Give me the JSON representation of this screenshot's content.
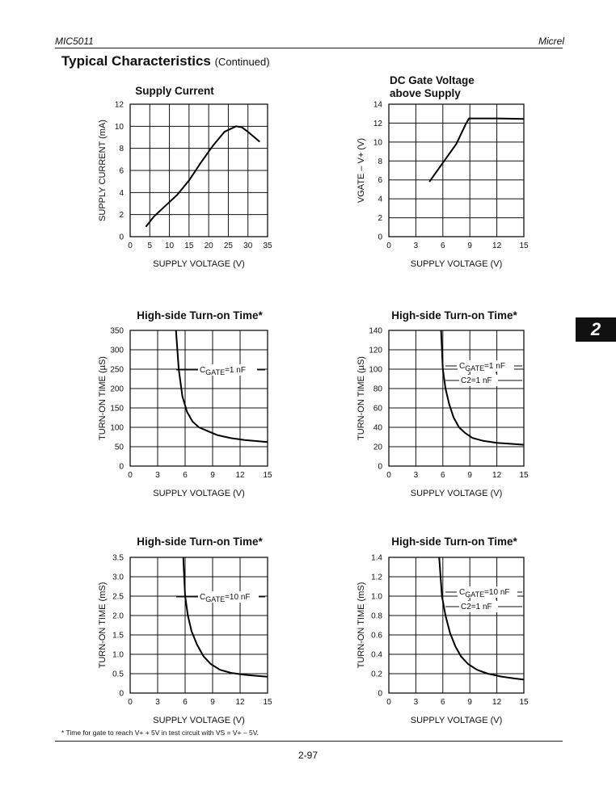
{
  "header": {
    "left": "MIC5011",
    "right": "Micrel"
  },
  "section": {
    "title": "Typical Characteristics",
    "subtitle": "(Continued)"
  },
  "side_tab": "2",
  "footnote": "* Time for gate to reach V+ + 5V in test circuit with VS = V+ – 5V.",
  "page_number": "2-97",
  "chart_data": [
    {
      "type": "line",
      "title": "Supply Current",
      "xlabel": "SUPPLY VOLTAGE (V)",
      "ylabel": "SUPPLY CURRENT (mA)",
      "xlim": [
        0,
        35
      ],
      "ylim": [
        0,
        12
      ],
      "xticks": [
        "0",
        "5",
        "10",
        "15",
        "20",
        "25",
        "30",
        "35"
      ],
      "yticks": [
        "0",
        "2",
        "4",
        "6",
        "8",
        "10",
        "12"
      ],
      "xtick_values": [
        0,
        5,
        10,
        15,
        20,
        25,
        30,
        35
      ],
      "ytick_values": [
        0,
        2,
        4,
        6,
        8,
        10,
        12
      ],
      "grid": true,
      "annotations": [],
      "series": [
        {
          "x": [
            4,
            6,
            9,
            12,
            15,
            18,
            21,
            24,
            27,
            28.5,
            30,
            33
          ],
          "y": [
            0.9,
            1.8,
            2.8,
            3.8,
            5.1,
            6.7,
            8.2,
            9.5,
            10.0,
            9.9,
            9.5,
            8.6
          ]
        }
      ]
    },
    {
      "type": "line",
      "title": "DC Gate Voltage above Supply",
      "title_lines": [
        "DC Gate Voltage",
        "above Supply"
      ],
      "xlabel": "SUPPLY VOLTAGE (V)",
      "ylabel": "VGATE – V+ (V)",
      "xlim": [
        0,
        15
      ],
      "ylim": [
        0,
        14
      ],
      "xticks": [
        "0",
        "3",
        "6",
        "9",
        "12",
        "15"
      ],
      "yticks": [
        "0",
        "2",
        "4",
        "6",
        "8",
        "10",
        "12",
        "14"
      ],
      "xtick_values": [
        0,
        3,
        6,
        9,
        12,
        15
      ],
      "ytick_values": [
        0,
        2,
        4,
        6,
        8,
        10,
        12,
        14
      ],
      "grid": true,
      "annotations": [],
      "series": [
        {
          "x": [
            4.5,
            6,
            7.5,
            8.5,
            8.9,
            12,
            15
          ],
          "y": [
            5.8,
            7.8,
            9.8,
            11.8,
            12.5,
            12.5,
            12.45
          ]
        }
      ]
    },
    {
      "type": "line",
      "title": "High-side Turn-on Time*",
      "xlabel": "SUPPLY VOLTAGE (V)",
      "ylabel": "TURN-ON TIME (µS)",
      "xlim": [
        0,
        15
      ],
      "ylim": [
        0,
        350
      ],
      "xticks": [
        "0",
        "3",
        "6",
        "9",
        "12",
        "15"
      ],
      "yticks": [
        "0",
        "50",
        "100",
        "150",
        "200",
        "250",
        "300",
        "350"
      ],
      "xtick_values": [
        0,
        3,
        6,
        9,
        12,
        15
      ],
      "ytick_values": [
        0,
        50,
        100,
        150,
        200,
        250,
        300,
        350
      ],
      "grid": true,
      "annotations": [
        {
          "main": "CGATE",
          "sub": "GATE",
          "prefix": "C",
          "rest": "=1 nF",
          "line2": ""
        }
      ],
      "series": [
        {
          "x": [
            5.0,
            5.3,
            5.7,
            6.2,
            6.8,
            7.5,
            8.5,
            9.5,
            11,
            12.5,
            14,
            15
          ],
          "y": [
            350,
            250,
            180,
            140,
            115,
            100,
            90,
            80,
            72,
            67,
            64,
            62
          ]
        }
      ]
    },
    {
      "type": "line",
      "title": "High-side Turn-on Time*",
      "xlabel": "SUPPLY VOLTAGE (V)",
      "ylabel": "TURN-ON TIME (µS)",
      "xlim": [
        0,
        15
      ],
      "ylim": [
        0,
        140
      ],
      "xticks": [
        "0",
        "3",
        "6",
        "9",
        "12",
        "15"
      ],
      "yticks": [
        "0",
        "20",
        "40",
        "60",
        "80",
        "100",
        "120",
        "140"
      ],
      "xtick_values": [
        0,
        3,
        6,
        9,
        12,
        15
      ],
      "ytick_values": [
        0,
        20,
        40,
        60,
        80,
        100,
        120,
        140
      ],
      "grid": true,
      "annotations": [
        {
          "prefix": "C",
          "sub": "GATE",
          "rest": "=1 nF",
          "line2": "C2=1 nF"
        }
      ],
      "series": [
        {
          "x": [
            5.8,
            6.0,
            6.3,
            6.7,
            7.2,
            7.8,
            8.5,
            9.3,
            10.5,
            12,
            13.5,
            15
          ],
          "y": [
            140,
            100,
            80,
            64,
            50,
            40,
            34,
            29,
            26,
            24,
            23,
            22
          ]
        }
      ]
    },
    {
      "type": "line",
      "title": "High-side Turn-on Time*",
      "xlabel": "SUPPLY VOLTAGE (V)",
      "ylabel": "TURN-ON TIME (mS)",
      "xlim": [
        0,
        15
      ],
      "ylim": [
        0,
        3.5
      ],
      "xticks": [
        "0",
        "3",
        "6",
        "9",
        "12",
        "15"
      ],
      "yticks": [
        "0",
        "0.5",
        "1.0",
        "1.5",
        "2.0",
        "2.5",
        "3.0",
        "3.5"
      ],
      "xtick_values": [
        0,
        3,
        6,
        9,
        12,
        15
      ],
      "ytick_values": [
        0,
        0.5,
        1,
        1.5,
        2,
        2.5,
        3,
        3.5
      ],
      "grid": true,
      "annotations": [
        {
          "prefix": "C",
          "sub": "GATE",
          "rest": "=10 nF",
          "line2": ""
        }
      ],
      "series": [
        {
          "x": [
            5.8,
            6.0,
            6.3,
            6.7,
            7.3,
            8.0,
            8.8,
            9.8,
            11,
            12.5,
            14,
            15
          ],
          "y": [
            3.5,
            2.5,
            2.0,
            1.6,
            1.25,
            0.95,
            0.75,
            0.6,
            0.52,
            0.47,
            0.44,
            0.42
          ]
        }
      ]
    },
    {
      "type": "line",
      "title": "High-side Turn-on Time*",
      "xlabel": "SUPPLY VOLTAGE (V)",
      "ylabel": "TURN-ON TIME (mS)",
      "xlim": [
        0,
        15
      ],
      "ylim": [
        0,
        1.4
      ],
      "xticks": [
        "0",
        "3",
        "6",
        "9",
        "12",
        "15"
      ],
      "yticks": [
        "0",
        "0.2",
        "0.4",
        "0.6",
        "0.8",
        "1.0",
        "1.2",
        "1.4"
      ],
      "xtick_values": [
        0,
        3,
        6,
        9,
        12,
        15
      ],
      "ytick_values": [
        0,
        0.2,
        0.4,
        0.6,
        0.8,
        1.0,
        1.2,
        1.4
      ],
      "grid": true,
      "annotations": [
        {
          "prefix": "C",
          "sub": "GATE",
          "rest": "=10 nF",
          "line2": "C2=1 nF"
        }
      ],
      "series": [
        {
          "x": [
            5.6,
            5.9,
            6.3,
            6.8,
            7.4,
            8.0,
            8.8,
            9.8,
            11,
            12.5,
            14,
            15
          ],
          "y": [
            1.4,
            1.0,
            0.8,
            0.62,
            0.48,
            0.38,
            0.3,
            0.24,
            0.2,
            0.17,
            0.15,
            0.14
          ]
        }
      ]
    }
  ]
}
